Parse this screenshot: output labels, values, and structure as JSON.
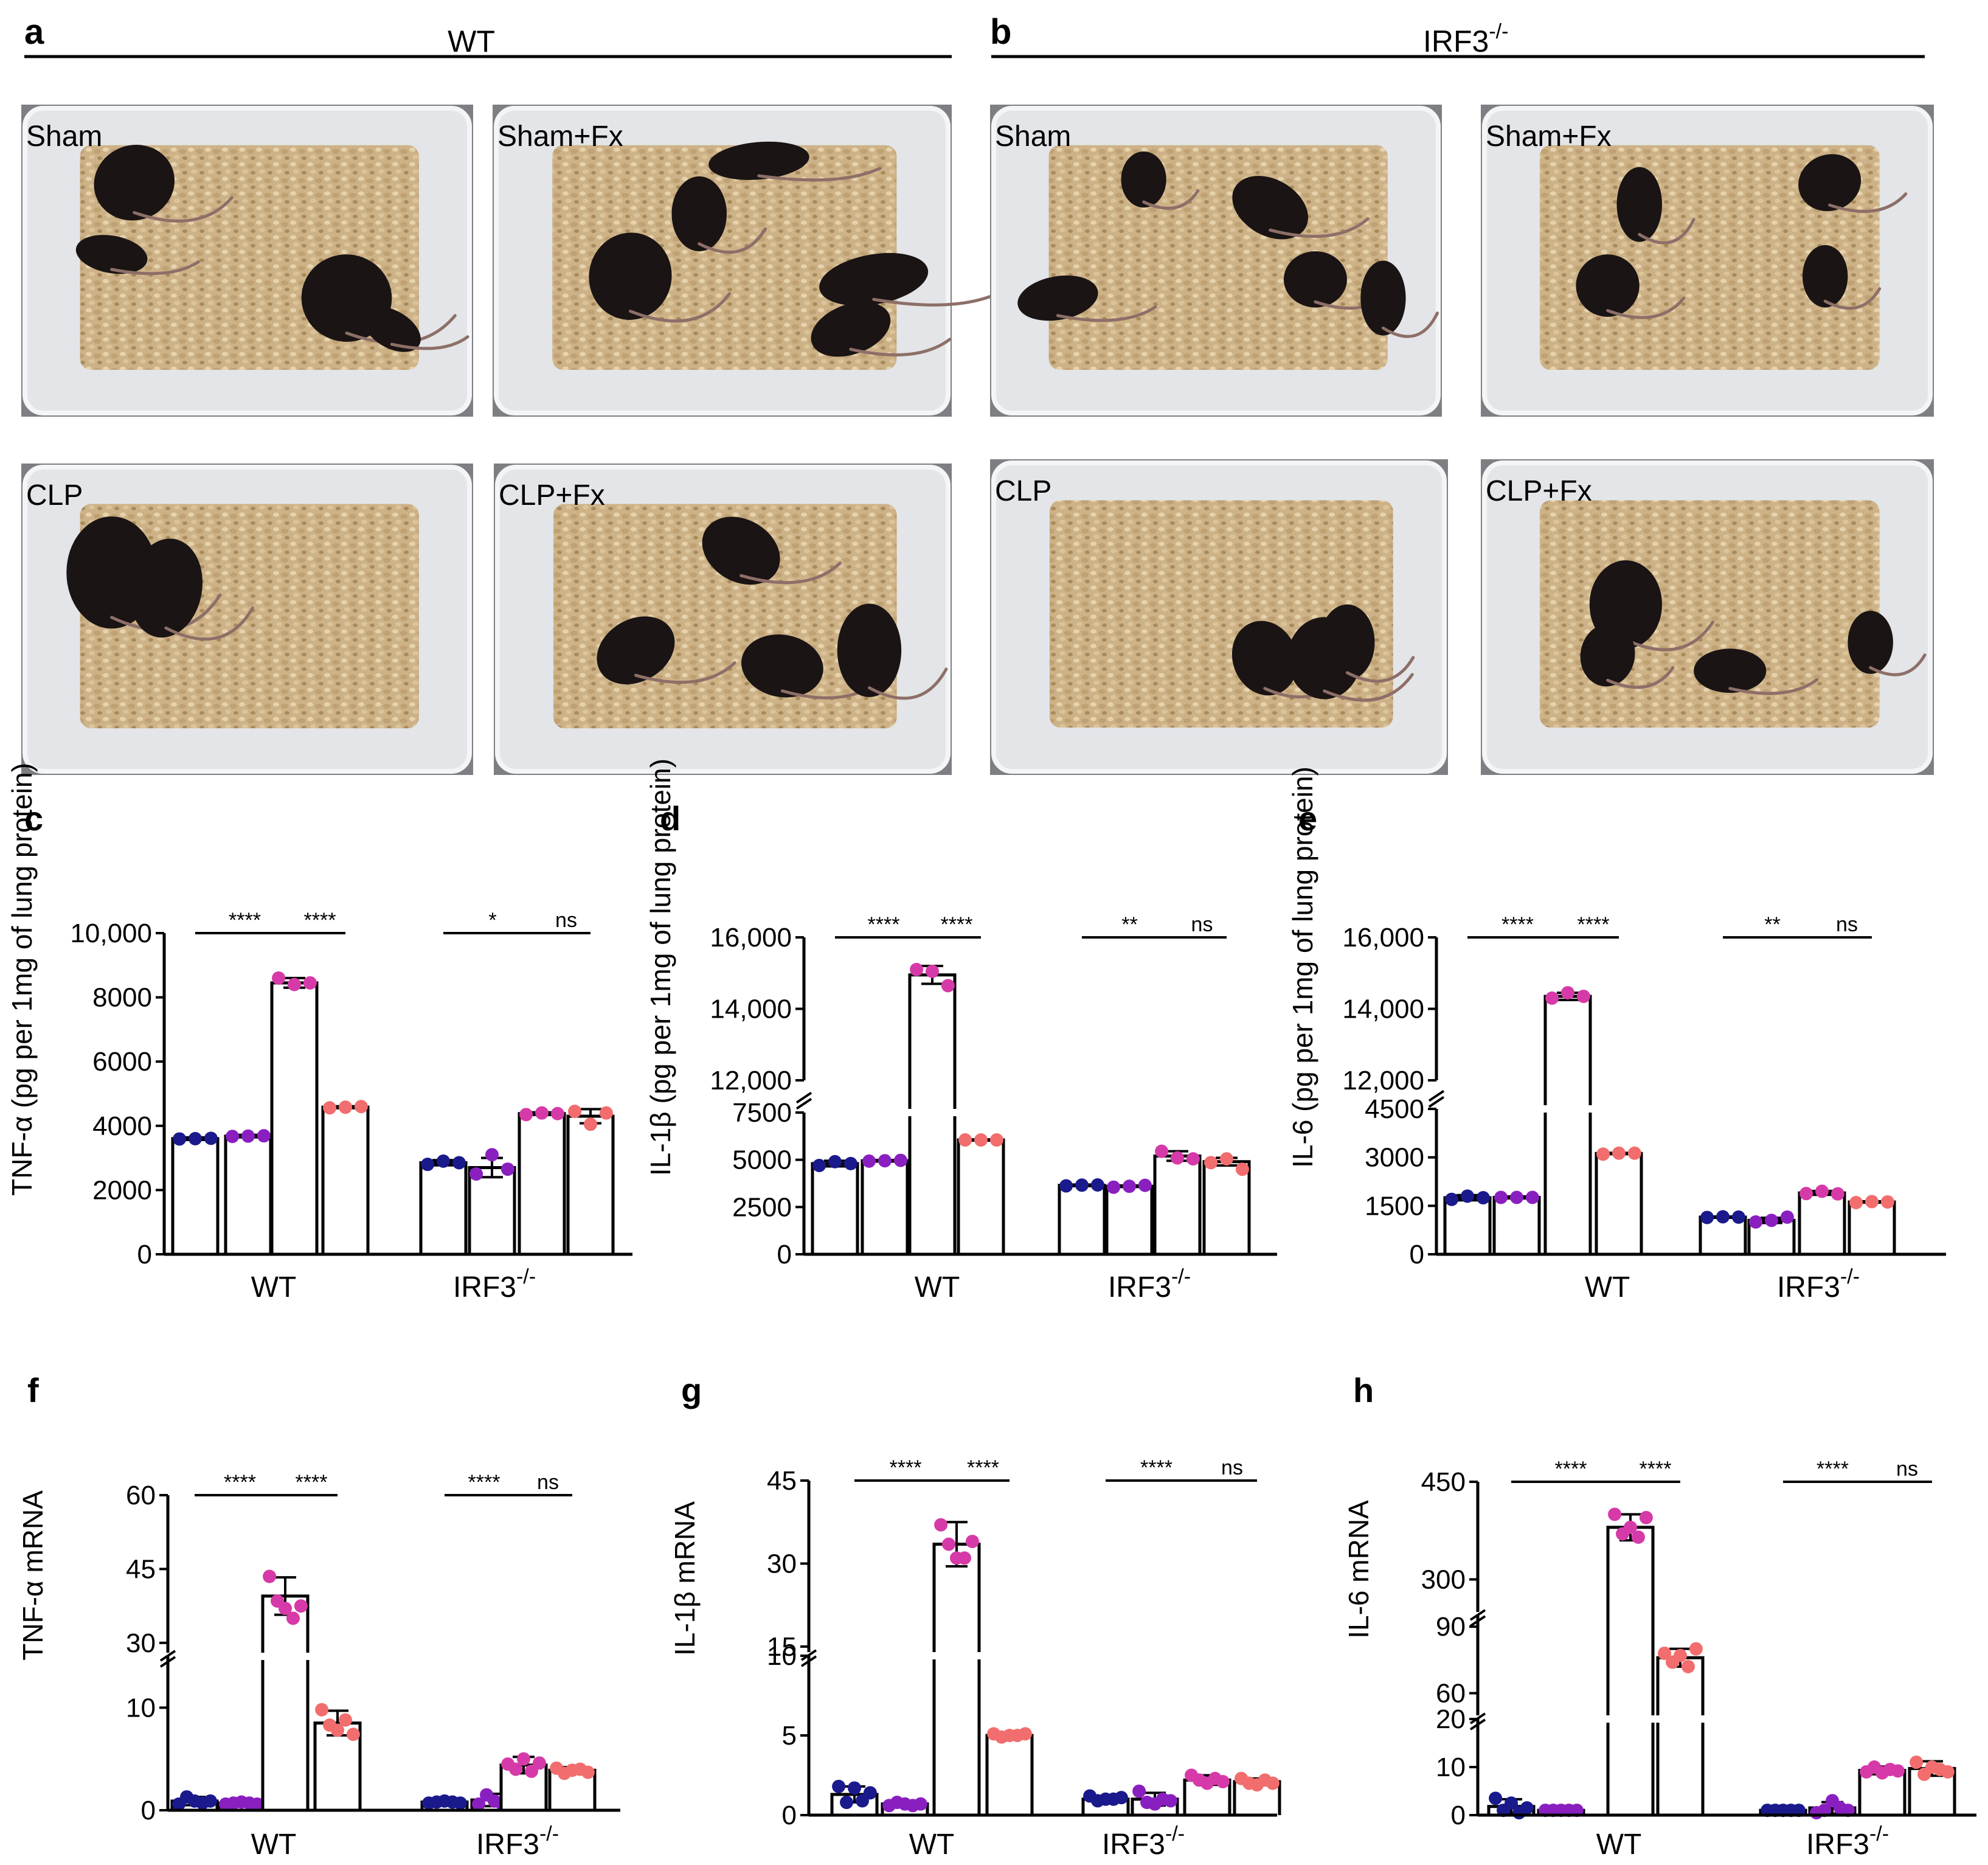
{
  "header": {
    "a": {
      "letter": "a",
      "group": "WT"
    },
    "b": {
      "letter": "b",
      "group": "IRF3",
      "group_sup": "-/-"
    }
  },
  "photos": {
    "a": [
      "Sham",
      "Sham+Fx",
      "CLP",
      "CLP+Fx"
    ],
    "b": [
      "Sham",
      "Sham+Fx",
      "CLP",
      "CLP+Fx"
    ]
  },
  "colors": {
    "Sham": "#1a1a8c",
    "Sham+Fx": "#8a1fc0",
    "CLP": "#d63aa8",
    "CLP+Fx": "#f26d6d",
    "bedding": "#cdb287",
    "box": "#e3e5e8",
    "mouse": "#1a1414"
  },
  "chart_data": [
    {
      "panel": "c",
      "type": "bar",
      "ylabel": "TNF-α (pg per 1mg of lung protein)",
      "categories": [
        "WT",
        "IRF3"
      ],
      "category_sup": [
        "",
        "-/-"
      ],
      "groups": [
        "Sham",
        "Sham+Fx",
        "CLP",
        "CLP+Fx"
      ],
      "broken_axis": false,
      "yticks": [
        {
          "v": 0,
          "label": "0"
        },
        {
          "v": 2000,
          "label": "2000"
        },
        {
          "v": 4000,
          "label": "4000"
        },
        {
          "v": 6000,
          "label": "6000"
        },
        {
          "v": 8000,
          "label": "8000"
        },
        {
          "v": 10000,
          "label": "10,000"
        }
      ],
      "series": [
        {
          "name": "Sham",
          "values": [
            3600,
            2850
          ],
          "sd": [
            40,
            80
          ],
          "points": [
            [
              3590,
              3600,
              3610
            ],
            [
              2800,
              2900,
              2850
            ]
          ]
        },
        {
          "name": "Sham+Fx",
          "values": [
            3680,
            2700
          ],
          "sd": [
            40,
            300
          ],
          "points": [
            [
              3670,
              3680,
              3690
            ],
            [
              2500,
              3100,
              2650
            ]
          ]
        },
        {
          "name": "CLP",
          "values": [
            8450,
            4380
          ],
          "sd": [
            150,
            40
          ],
          "points": [
            [
              8600,
              8400,
              8450
            ],
            [
              4350,
              4400,
              4380
            ]
          ]
        },
        {
          "name": "CLP+Fx",
          "values": [
            4580,
            4300
          ],
          "sd": [
            30,
            220
          ],
          "points": [
            [
              4560,
              4580,
              4600
            ],
            [
              4450,
              4050,
              4400
            ]
          ]
        }
      ],
      "comparisons": [
        {
          "cat": 0,
          "from": 0,
          "to": 2,
          "label": "****"
        },
        {
          "cat": 0,
          "from": 2,
          "to": 3,
          "label": "****"
        },
        {
          "cat": 1,
          "from": 0,
          "to": 2,
          "label": "*"
        },
        {
          "cat": 1,
          "from": 2,
          "to": 3,
          "label": "ns"
        }
      ]
    },
    {
      "panel": "d",
      "type": "bar",
      "ylabel": "IL-1β (pg per 1mg of lung protein)",
      "categories": [
        "WT",
        "IRF3"
      ],
      "category_sup": [
        "",
        "-/-"
      ],
      "groups": [
        "Sham",
        "Sham+Fx",
        "CLP",
        "CLP+Fx"
      ],
      "broken_axis": true,
      "yticks": [
        {
          "v": 0,
          "label": "0"
        },
        {
          "v": 2500,
          "label": "2500"
        },
        {
          "v": 5000,
          "label": "5000"
        },
        {
          "v": 7500,
          "label": "7500"
        },
        {
          "v": 12000,
          "label": "12,000"
        },
        {
          "v": 14000,
          "label": "14,000"
        },
        {
          "v": 16000,
          "label": "16,000"
        }
      ],
      "series": [
        {
          "name": "Sham",
          "values": [
            4800,
            3650
          ],
          "sd": [
            150,
            40
          ],
          "points": [
            [
              4700,
              4900,
              4800
            ],
            [
              3620,
              3660,
              3670
            ]
          ]
        },
        {
          "name": "Sham+Fx",
          "values": [
            4950,
            3600
          ],
          "sd": [
            40,
            40
          ],
          "points": [
            [
              4930,
              4950,
              4970
            ],
            [
              3550,
              3600,
              3650
            ]
          ]
        },
        {
          "name": "CLP",
          "values": [
            14950,
            5200
          ],
          "sd": [
            250,
            250
          ],
          "points": [
            [
              15100,
              15050,
              14650
            ],
            [
              5450,
              5100,
              5050
            ]
          ]
        },
        {
          "name": "CLP+Fx",
          "values": [
            6050,
            4900
          ],
          "sd": [
            30,
            200
          ],
          "points": [
            [
              6050,
              6050,
              6050
            ],
            [
              4850,
              5050,
              4500
            ]
          ]
        }
      ],
      "comparisons": [
        {
          "cat": 0,
          "from": 0,
          "to": 2,
          "label": "****"
        },
        {
          "cat": 0,
          "from": 2,
          "to": 3,
          "label": "****"
        },
        {
          "cat": 1,
          "from": 0,
          "to": 2,
          "label": "**"
        },
        {
          "cat": 1,
          "from": 2,
          "to": 3,
          "label": "ns"
        }
      ]
    },
    {
      "panel": "e",
      "type": "bar",
      "ylabel": "IL-6 (pg per 1mg of lung protein)",
      "categories": [
        "WT",
        "IRF3"
      ],
      "category_sup": [
        "",
        "-/-"
      ],
      "groups": [
        "Sham",
        "Sham+Fx",
        "CLP",
        "CLP+Fx"
      ],
      "broken_axis": true,
      "yticks": [
        {
          "v": 0,
          "label": "0"
        },
        {
          "v": 1500,
          "label": "1500"
        },
        {
          "v": 3000,
          "label": "3000"
        },
        {
          "v": 4500,
          "label": "4500"
        },
        {
          "v": 12000,
          "label": "12,000"
        },
        {
          "v": 14000,
          "label": "14,000"
        },
        {
          "v": 16000,
          "label": "16,000"
        }
      ],
      "series": [
        {
          "name": "Sham",
          "values": [
            1750,
            1150
          ],
          "sd": [
            80,
            20
          ],
          "points": [
            [
              1700,
              1800,
              1750
            ],
            [
              1140,
              1160,
              1150
            ]
          ]
        },
        {
          "name": "Sham+Fx",
          "values": [
            1760,
            1050
          ],
          "sd": [
            30,
            80
          ],
          "points": [
            [
              1760,
              1760,
              1760
            ],
            [
              1000,
              1050,
              1150
            ]
          ]
        },
        {
          "name": "CLP",
          "values": [
            14350,
            1900
          ],
          "sd": [
            100,
            60
          ],
          "points": [
            [
              14300,
              14450,
              14350
            ],
            [
              1880,
              1950,
              1870
            ]
          ]
        },
        {
          "name": "CLP+Fx",
          "values": [
            3120,
            1620
          ],
          "sd": [
            20,
            20
          ],
          "points": [
            [
              3100,
              3130,
              3130
            ],
            [
              1600,
              1630,
              1620
            ]
          ]
        }
      ],
      "comparisons": [
        {
          "cat": 0,
          "from": 0,
          "to": 2,
          "label": "****"
        },
        {
          "cat": 0,
          "from": 2,
          "to": 3,
          "label": "****"
        },
        {
          "cat": 1,
          "from": 0,
          "to": 2,
          "label": "**"
        },
        {
          "cat": 1,
          "from": 2,
          "to": 3,
          "label": "ns"
        }
      ]
    },
    {
      "panel": "f",
      "type": "bar",
      "ylabel": "TNF-α mRNA",
      "categories": [
        "WT",
        "IRF3"
      ],
      "category_sup": [
        "",
        "-/-"
      ],
      "groups": [
        "Sham",
        "Sham+Fx",
        "CLP",
        "CLP+Fx"
      ],
      "broken_axis": true,
      "yticks": [
        {
          "v": 0,
          "label": "0"
        },
        {
          "v": 10,
          "label": "10"
        },
        {
          "v": 30,
          "label": "30"
        },
        {
          "v": 45,
          "label": "45"
        },
        {
          "v": 60,
          "label": "60"
        }
      ],
      "series": [
        {
          "name": "Sham",
          "values": [
            0.9,
            0.8
          ],
          "sd": [
            0.4,
            0.1
          ],
          "points": [
            [
              0.6,
              1.3,
              0.9,
              0.7,
              0.9
            ],
            [
              0.7,
              0.8,
              0.9,
              0.8,
              0.7
            ]
          ]
        },
        {
          "name": "Sham+Fx",
          "values": [
            0.7,
            1.0
          ],
          "sd": [
            0.1,
            0.6
          ],
          "points": [
            [
              0.6,
              0.7,
              0.8,
              0.7,
              0.6
            ],
            [
              0.6,
              1.5,
              0.9,
              0.6,
              1.2
            ]
          ]
        },
        {
          "name": "CLP",
          "values": [
            39.5,
            4.4
          ],
          "sd": [
            3.8,
            0.8
          ],
          "points": [
            [
              43.5,
              38.5,
              37,
              35,
              37.5
            ],
            [
              4.5,
              4.0,
              5.0,
              3.8,
              4.6
            ]
          ]
        },
        {
          "name": "CLP+Fx",
          "values": [
            8.5,
            3.9
          ],
          "sd": [
            1.2,
            0.3
          ],
          "points": [
            [
              9.8,
              8.3,
              7.8,
              8.8,
              7.4
            ],
            [
              4.1,
              3.6,
              3.9,
              4.0,
              3.7
            ]
          ]
        }
      ],
      "comparisons": [
        {
          "cat": 0,
          "from": 0,
          "to": 2,
          "label": "****"
        },
        {
          "cat": 0,
          "from": 2,
          "to": 3,
          "label": "****"
        },
        {
          "cat": 1,
          "from": 0,
          "to": 2,
          "label": "****"
        },
        {
          "cat": 1,
          "from": 2,
          "to": 3,
          "label": "ns"
        }
      ]
    },
    {
      "panel": "g",
      "type": "bar",
      "ylabel": "IL-1β mRNA",
      "categories": [
        "WT",
        "IRF3"
      ],
      "category_sup": [
        "",
        "-/-"
      ],
      "groups": [
        "Sham",
        "Sham+Fx",
        "CLP",
        "CLP+Fx"
      ],
      "broken_axis": true,
      "yticks": [
        {
          "v": 0,
          "label": "0"
        },
        {
          "v": 5,
          "label": "5"
        },
        {
          "v": 10,
          "label": "10"
        },
        {
          "v": 15,
          "label": "15"
        },
        {
          "v": 30,
          "label": "30"
        },
        {
          "v": 45,
          "label": "45"
        }
      ],
      "series": [
        {
          "name": "Sham",
          "values": [
            1.3,
            1.0
          ],
          "sd": [
            0.5,
            0.2
          ],
          "points": [
            [
              1.8,
              0.8,
              1.7,
              0.9,
              1.4
            ],
            [
              1.2,
              0.9,
              1.0,
              1.0,
              1.1
            ]
          ]
        },
        {
          "name": "Sham+Fx",
          "values": [
            0.7,
            1.0
          ],
          "sd": [
            0.1,
            0.4
          ],
          "points": [
            [
              0.6,
              0.8,
              0.7,
              0.6,
              0.7
            ],
            [
              1.5,
              0.8,
              0.7,
              1.0,
              0.9
            ]
          ]
        },
        {
          "name": "CLP",
          "values": [
            33.5,
            2.2
          ],
          "sd": [
            4,
            0.3
          ],
          "points": [
            [
              37,
              33.5,
              31,
              31,
              34
            ],
            [
              2.5,
              2.2,
              2.0,
              2.3,
              2.1
            ]
          ]
        },
        {
          "name": "CLP+Fx",
          "values": [
            5.0,
            2.1
          ],
          "sd": [
            0.2,
            0.2
          ],
          "points": [
            [
              5.1,
              4.9,
              5.0,
              5.0,
              5.1
            ],
            [
              2.3,
              2.0,
              1.9,
              2.2,
              2.0
            ]
          ]
        }
      ],
      "comparisons": [
        {
          "cat": 0,
          "from": 0,
          "to": 2,
          "label": "****"
        },
        {
          "cat": 0,
          "from": 2,
          "to": 3,
          "label": "****"
        },
        {
          "cat": 1,
          "from": 0,
          "to": 2,
          "label": "****"
        },
        {
          "cat": 1,
          "from": 2,
          "to": 3,
          "label": "ns"
        }
      ]
    },
    {
      "panel": "h",
      "type": "bar",
      "ylabel": "IL-6 mRNA",
      "categories": [
        "WT",
        "IRF3"
      ],
      "category_sup": [
        "",
        "-/-"
      ],
      "groups": [
        "Sham",
        "Sham+Fx",
        "CLP",
        "CLP+Fx"
      ],
      "broken_axis": true,
      "yticks": [
        {
          "v": 0,
          "label": "0"
        },
        {
          "v": 10,
          "label": "10"
        },
        {
          "v": 20,
          "label": "20"
        },
        {
          "v": 60,
          "label": "60"
        },
        {
          "v": 90,
          "label": "90"
        },
        {
          "v": 300,
          "label": "300"
        },
        {
          "v": 450,
          "label": "450"
        }
      ],
      "series": [
        {
          "name": "Sham",
          "values": [
            1.8,
            1.0
          ],
          "sd": [
            1.5,
            0.1
          ],
          "points": [
            [
              3.5,
              1.0,
              2.5,
              0.5,
              1.5
            ],
            [
              1.0,
              1.0,
              1.0,
              1.0,
              1.0
            ]
          ]
        },
        {
          "name": "Sham+Fx",
          "values": [
            1.0,
            1.5
          ],
          "sd": [
            0.2,
            1.2
          ],
          "points": [
            [
              1.0,
              1.0,
              1.0,
              1.0,
              1.0
            ],
            [
              0.5,
              1.0,
              3.0,
              1.5,
              1.0
            ]
          ]
        },
        {
          "name": "CLP",
          "values": [
            380,
            9.3
          ],
          "sd": [
            20,
            0.8
          ],
          "points": [
            [
              400,
              370,
              380,
              365,
              395
            ],
            [
              9.0,
              10.0,
              8.8,
              9.5,
              9.2
            ]
          ]
        },
        {
          "name": "CLP+Fx",
          "values": [
            76,
            9.7
          ],
          "sd": [
            4,
            1.5
          ],
          "points": [
            [
              78,
              74,
              77,
              72,
              80
            ],
            [
              11.0,
              8.5,
              10.0,
              9.5,
              9.0
            ]
          ]
        }
      ],
      "comparisons": [
        {
          "cat": 0,
          "from": 0,
          "to": 2,
          "label": "****"
        },
        {
          "cat": 0,
          "from": 2,
          "to": 3,
          "label": "****"
        },
        {
          "cat": 1,
          "from": 0,
          "to": 2,
          "label": "****"
        },
        {
          "cat": 1,
          "from": 2,
          "to": 3,
          "label": "ns"
        }
      ]
    }
  ]
}
